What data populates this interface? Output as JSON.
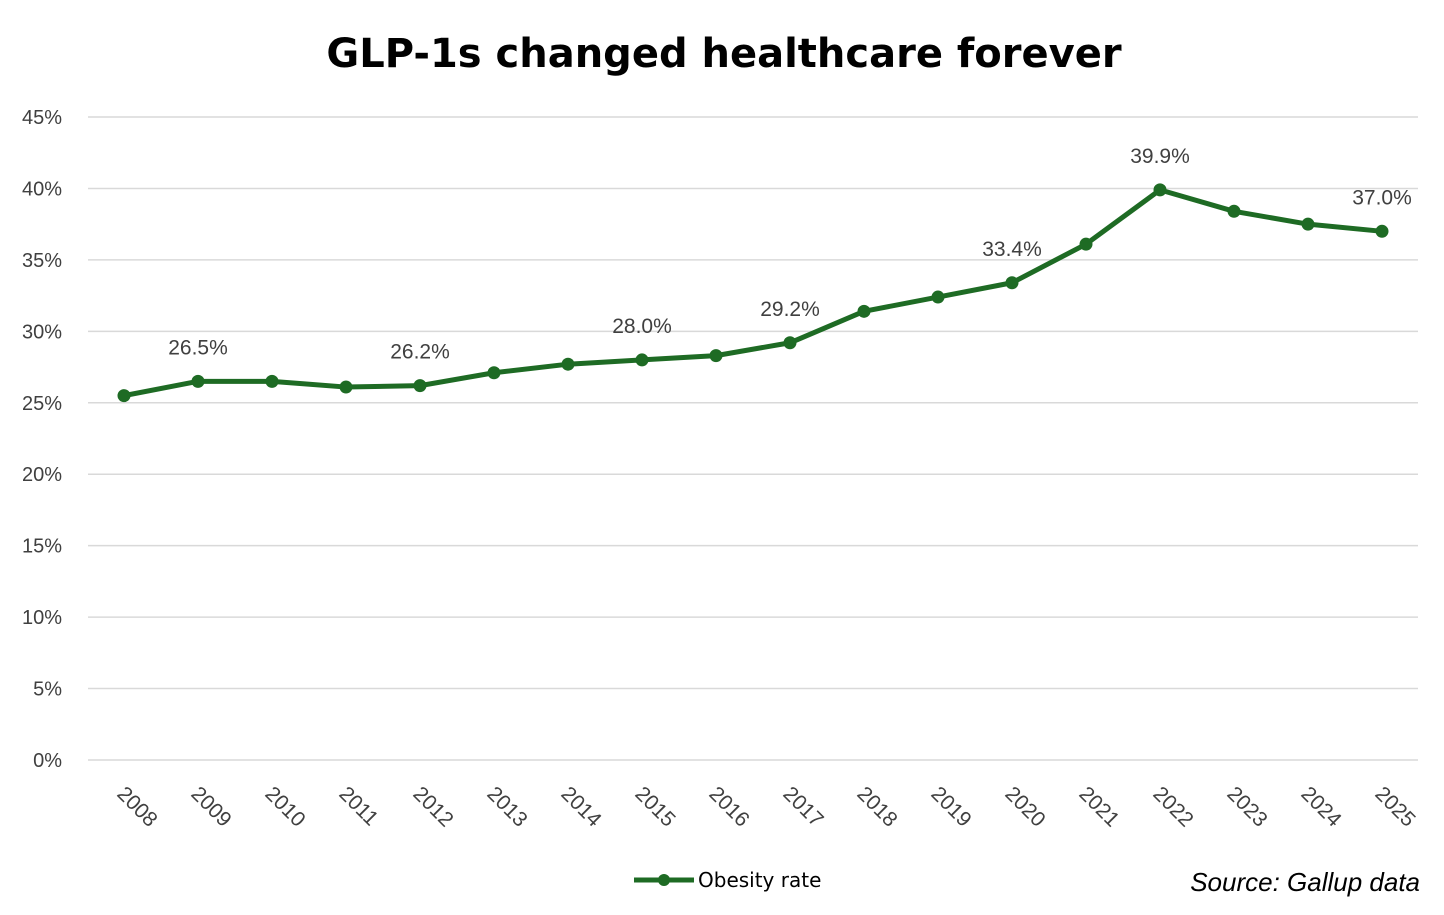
{
  "chart_data": {
    "type": "line",
    "title": "GLP-1s changed healthcare forever",
    "xlabel": "",
    "ylabel": "",
    "categories": [
      "2008",
      "2009",
      "2010",
      "2011",
      "2012",
      "2013",
      "2014",
      "2015",
      "2016",
      "2017",
      "2018",
      "2019",
      "2020",
      "2021",
      "2022",
      "2023",
      "2024",
      "2025"
    ],
    "series": [
      {
        "name": "Obesity rate",
        "color": "#1e6b24",
        "values": [
          25.5,
          26.5,
          26.5,
          26.1,
          26.2,
          27.1,
          27.7,
          28.0,
          28.3,
          29.2,
          31.4,
          32.4,
          33.4,
          36.1,
          39.9,
          38.4,
          37.5,
          37.0
        ]
      }
    ],
    "data_labels": [
      {
        "index": 1,
        "text": "26.5%"
      },
      {
        "index": 4,
        "text": "26.2%"
      },
      {
        "index": 7,
        "text": "28.0%"
      },
      {
        "index": 9,
        "text": "29.2%"
      },
      {
        "index": 12,
        "text": "33.4%"
      },
      {
        "index": 14,
        "text": "39.9%"
      },
      {
        "index": 17,
        "text": "37.0%"
      }
    ],
    "ylim": [
      0,
      45
    ],
    "y_ticks": [
      "0%",
      "5%",
      "10%",
      "15%",
      "20%",
      "25%",
      "30%",
      "35%",
      "40%",
      "45%"
    ],
    "grid": true,
    "legend_position": "bottom-center",
    "source_note": "Source: Gallup data"
  }
}
